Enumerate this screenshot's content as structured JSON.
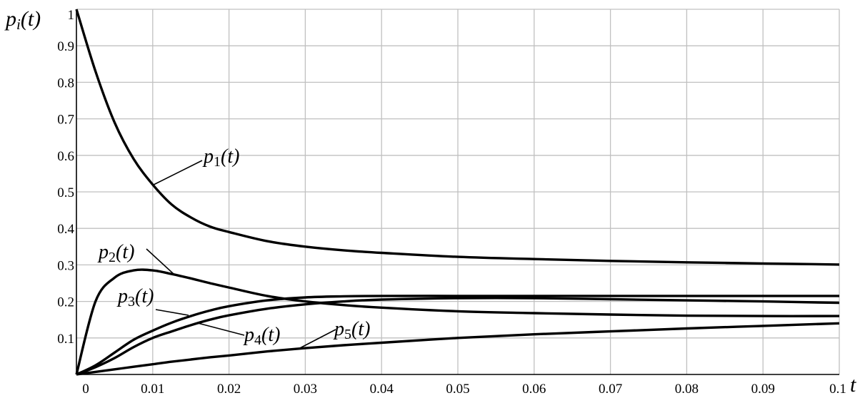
{
  "chart_data": {
    "type": "line",
    "ylabel_main": "p",
    "ylabel_sub": "i",
    "ylabel_paren": "(t)",
    "xlabel": "t",
    "xlim": [
      0,
      0.1
    ],
    "ylim": [
      0,
      1
    ],
    "grid": true,
    "x_ticks": [
      "0",
      "0.01",
      "0.02",
      "0.03",
      "0.04",
      "0.05",
      "0.06",
      "0.07",
      "0.08",
      "0.09",
      "0.1"
    ],
    "y_ticks": [
      "0.1",
      "0.2",
      "0.3",
      "0.4",
      "0.5",
      "0.6",
      "0.7",
      "0.8",
      "0.9",
      "1"
    ],
    "x": [
      0,
      0.0025,
      0.005,
      0.0075,
      0.01,
      0.0125,
      0.015,
      0.0175,
      0.02,
      0.025,
      0.03,
      0.035,
      0.04,
      0.05,
      0.06,
      0.07,
      0.08,
      0.09,
      0.1
    ],
    "series": [
      {
        "name_main": "p",
        "name_sub": "1",
        "name_paren": "(t)",
        "values": [
          1.0,
          0.83,
          0.69,
          0.59,
          0.52,
          0.465,
          0.43,
          0.405,
          0.39,
          0.365,
          0.35,
          0.34,
          0.333,
          0.322,
          0.316,
          0.311,
          0.307,
          0.304,
          0.301
        ]
      },
      {
        "name_main": "p",
        "name_sub": "2",
        "name_paren": "(t)",
        "values": [
          0.0,
          0.2,
          0.265,
          0.285,
          0.285,
          0.275,
          0.263,
          0.25,
          0.238,
          0.215,
          0.2,
          0.19,
          0.183,
          0.173,
          0.168,
          0.164,
          0.161,
          0.16,
          0.16
        ]
      },
      {
        "name_main": "p",
        "name_sub": "3",
        "name_paren": "(t)",
        "values": [
          0.0,
          0.025,
          0.06,
          0.095,
          0.12,
          0.142,
          0.16,
          0.175,
          0.187,
          0.203,
          0.211,
          0.214,
          0.215,
          0.215,
          0.215,
          0.215,
          0.215,
          0.215,
          0.215
        ]
      },
      {
        "name_main": "p",
        "name_sub": "4",
        "name_paren": "(t)",
        "values": [
          0.0,
          0.02,
          0.045,
          0.075,
          0.1,
          0.118,
          0.135,
          0.15,
          0.162,
          0.18,
          0.192,
          0.2,
          0.205,
          0.209,
          0.209,
          0.206,
          0.203,
          0.2,
          0.196
        ]
      },
      {
        "name_main": "p",
        "name_sub": "5",
        "name_paren": "(t)",
        "values": [
          0.0,
          0.007,
          0.014,
          0.021,
          0.028,
          0.035,
          0.041,
          0.047,
          0.052,
          0.063,
          0.072,
          0.08,
          0.087,
          0.1,
          0.11,
          0.118,
          0.126,
          0.133,
          0.14
        ]
      }
    ]
  }
}
